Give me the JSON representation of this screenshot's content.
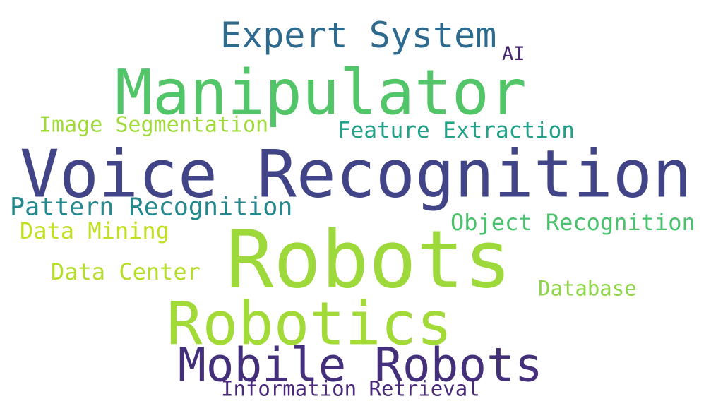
{
  "words": {
    "expert_system": {
      "text": "Expert System",
      "color": "#2e6a8e"
    },
    "ai": {
      "text": "AI",
      "color": "#46266e"
    },
    "manipulator": {
      "text": "Manipulator",
      "color": "#52c569"
    },
    "image_segmentation": {
      "text": "Image Segmentation",
      "color": "#a0da39"
    },
    "feature_extraction": {
      "text": "Feature Extraction",
      "color": "#21a187"
    },
    "voice_recognition": {
      "text": "Voice Recognition",
      "color": "#414487"
    },
    "pattern_recognition": {
      "text": "Pattern Recognition",
      "color": "#23898e"
    },
    "data_mining": {
      "text": "Data Mining",
      "color": "#c2df23"
    },
    "object_recognition": {
      "text": "Object Recognition",
      "color": "#4ac16d"
    },
    "robots": {
      "text": "Robots",
      "color": "#9dd93b"
    },
    "data_center": {
      "text": "Data Center",
      "color": "#b5de2b"
    },
    "database": {
      "text": "Database",
      "color": "#8ed645"
    },
    "robotics": {
      "text": "Robotics",
      "color": "#a2da37"
    },
    "mobile_robots": {
      "text": "Mobile Robots",
      "color": "#44307a"
    },
    "information_retrieval": {
      "text": "Information Retrieval",
      "color": "#482878"
    }
  }
}
